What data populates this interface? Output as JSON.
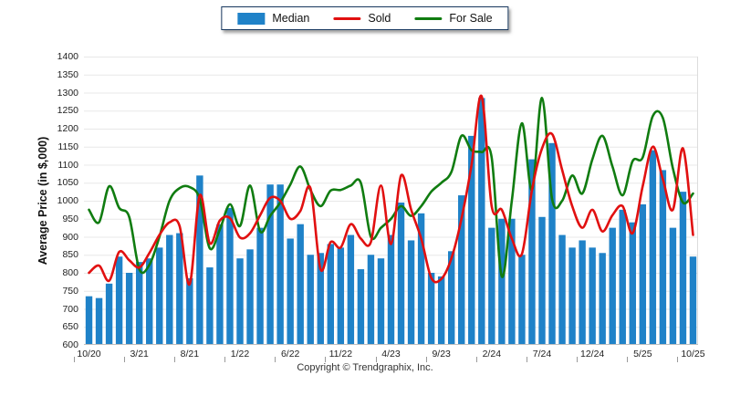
{
  "legend": {
    "items": [
      {
        "label": "Median",
        "type": "bar",
        "color": "#1F82C8"
      },
      {
        "label": "Sold",
        "type": "line",
        "color": "#E11010"
      },
      {
        "label": "For Sale",
        "type": "line",
        "color": "#107C10"
      }
    ]
  },
  "footer": {
    "copyright": "Copyright © Trendgraphix, Inc."
  },
  "chart_data": {
    "type": "bar+line",
    "title": "",
    "xlabel": "",
    "ylabel": "Average Price (in $,000)",
    "ylim": [
      600,
      1400
    ],
    "ytick_step": 50,
    "grid": true,
    "legend_position": "top-center",
    "x_tick_labels": [
      "10/20",
      "3/21",
      "8/21",
      "1/22",
      "6/22",
      "11/22",
      "4/23",
      "9/23",
      "2/24",
      "7/24",
      "12/24",
      "5/25",
      "10/25"
    ],
    "x_months": [
      "10/20",
      "11/20",
      "12/20",
      "1/21",
      "2/21",
      "3/21",
      "4/21",
      "5/21",
      "6/21",
      "7/21",
      "8/21",
      "9/21",
      "10/21",
      "11/21",
      "12/21",
      "1/22",
      "2/22",
      "3/22",
      "4/22",
      "5/22",
      "6/22",
      "7/22",
      "8/22",
      "9/22",
      "10/22",
      "11/22",
      "12/22",
      "1/23",
      "2/23",
      "3/23",
      "4/23",
      "5/23",
      "6/23",
      "7/23",
      "8/23",
      "9/23",
      "10/23",
      "11/23",
      "12/23",
      "1/24",
      "2/24",
      "3/24",
      "4/24",
      "5/24",
      "6/24",
      "7/24",
      "8/24",
      "9/24",
      "10/24",
      "11/24",
      "12/24",
      "1/25",
      "2/25",
      "3/25",
      "4/25",
      "5/25",
      "6/25",
      "7/25",
      "8/25",
      "9/25",
      "10/25"
    ],
    "series": [
      {
        "name": "Median",
        "type": "bar",
        "color": "#1F82C8",
        "values": [
          735,
          730,
          770,
          845,
          800,
          830,
          840,
          870,
          905,
          910,
          785,
          1070,
          815,
          935,
          980,
          840,
          865,
          925,
          1045,
          1045,
          895,
          935,
          850,
          855,
          880,
          870,
          905,
          810,
          850,
          840,
          905,
          995,
          890,
          965,
          800,
          790,
          860,
          1015,
          1180,
          1285,
          925,
          950,
          950,
          850,
          1115,
          955,
          1160,
          905,
          870,
          890,
          870,
          855,
          925,
          975,
          940,
          990,
          1140,
          1085,
          925,
          1025,
          845
        ]
      },
      {
        "name": "Sold",
        "type": "line",
        "color": "#E11010",
        "values": [
          800,
          820,
          778,
          858,
          835,
          815,
          855,
          905,
          940,
          930,
          768,
          1015,
          882,
          945,
          952,
          898,
          910,
          960,
          1008,
          1000,
          950,
          972,
          1035,
          810,
          885,
          870,
          935,
          895,
          885,
          1042,
          880,
          1070,
          975,
          895,
          786,
          783,
          840,
          950,
          1100,
          1290,
          985,
          975,
          895,
          852,
          1030,
          1145,
          1185,
          1085,
          985,
          925,
          975,
          915,
          960,
          985,
          910,
          1040,
          1150,
          1060,
          975,
          1145,
          905
        ]
      },
      {
        "name": "For Sale",
        "type": "line",
        "color": "#107C10",
        "values": [
          975,
          940,
          1040,
          980,
          955,
          810,
          822,
          900,
          1000,
          1035,
          1038,
          1005,
          868,
          920,
          990,
          930,
          1042,
          915,
          958,
          995,
          1045,
          1095,
          1030,
          985,
          1028,
          1030,
          1042,
          1050,
          900,
          925,
          950,
          985,
          958,
          985,
          1025,
          1050,
          1080,
          1180,
          1140,
          1135,
          1120,
          790,
          1000,
          1215,
          1030,
          1285,
          1005,
          1000,
          1070,
          1020,
          1115,
          1180,
          1095,
          1015,
          1110,
          1120,
          1235,
          1230,
          1090,
          995,
          1020
        ]
      }
    ]
  }
}
